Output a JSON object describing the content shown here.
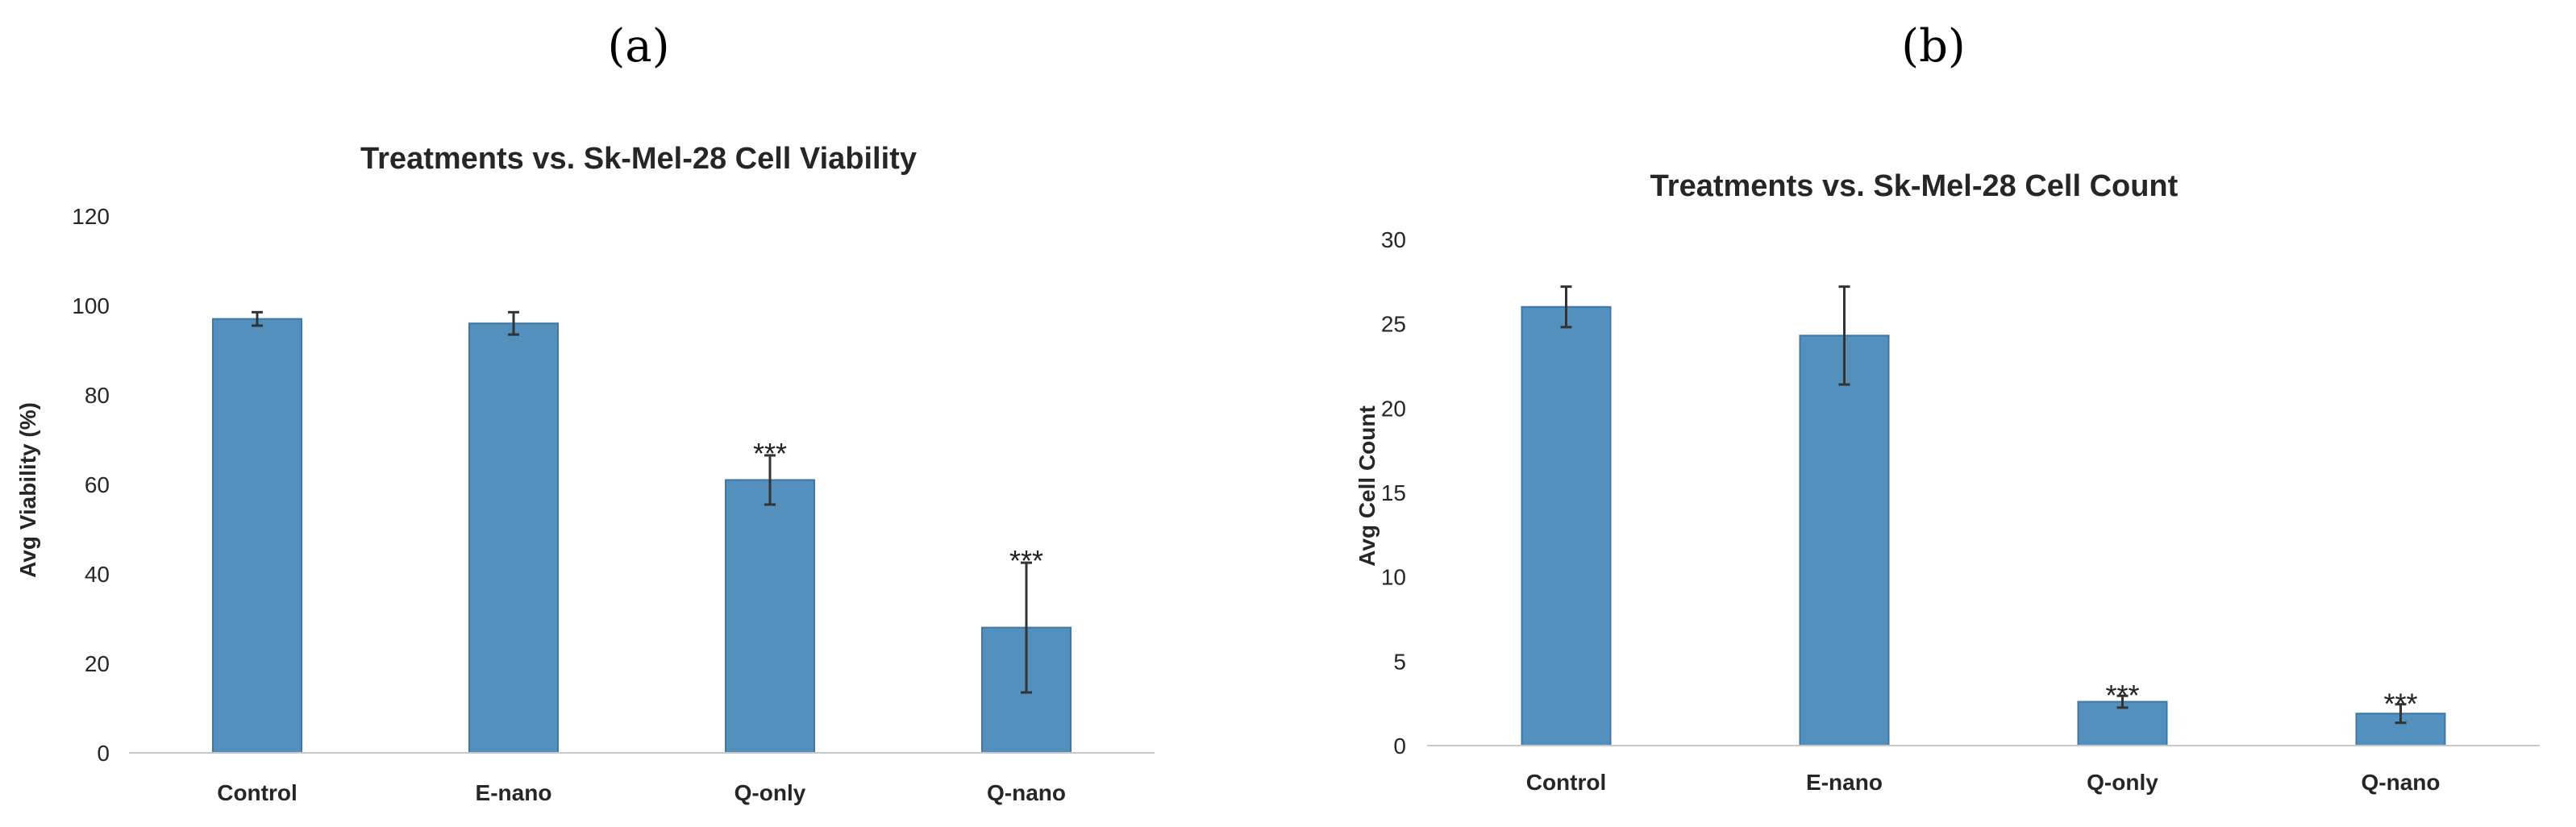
{
  "panels": [
    {
      "letter": "(a)",
      "chart_data": {
        "type": "bar",
        "title": "Treatments vs. Sk-Mel-28 Cell Viability",
        "xlabel": "",
        "ylabel": "Avg Viability (%)",
        "categories": [
          "Control",
          "E-nano",
          "Q-only",
          "Q-nano"
        ],
        "values": [
          97,
          96,
          61,
          28
        ],
        "error": [
          1.5,
          2.5,
          5.5,
          14.5
        ],
        "significance": [
          "",
          "",
          "***",
          "***"
        ],
        "ylim": [
          0,
          120
        ],
        "yticks": [
          0,
          20,
          40,
          60,
          80,
          100,
          120
        ],
        "grid": false
      }
    },
    {
      "letter": "(b)",
      "chart_data": {
        "type": "bar",
        "title": "Treatments vs. Sk-Mel-28 Cell Count",
        "xlabel": "",
        "ylabel": "Avg Cell Count",
        "categories": [
          "Control",
          "E-nano",
          "Q-only",
          "Q-nano"
        ],
        "values": [
          26,
          24.3,
          2.6,
          1.9
        ],
        "error": [
          1.2,
          2.9,
          0.35,
          0.55
        ],
        "significance": [
          "",
          "",
          "***",
          "***"
        ],
        "ylim": [
          0,
          30
        ],
        "yticks": [
          0,
          5,
          10,
          15,
          20,
          25,
          30
        ],
        "grid": false
      }
    }
  ]
}
